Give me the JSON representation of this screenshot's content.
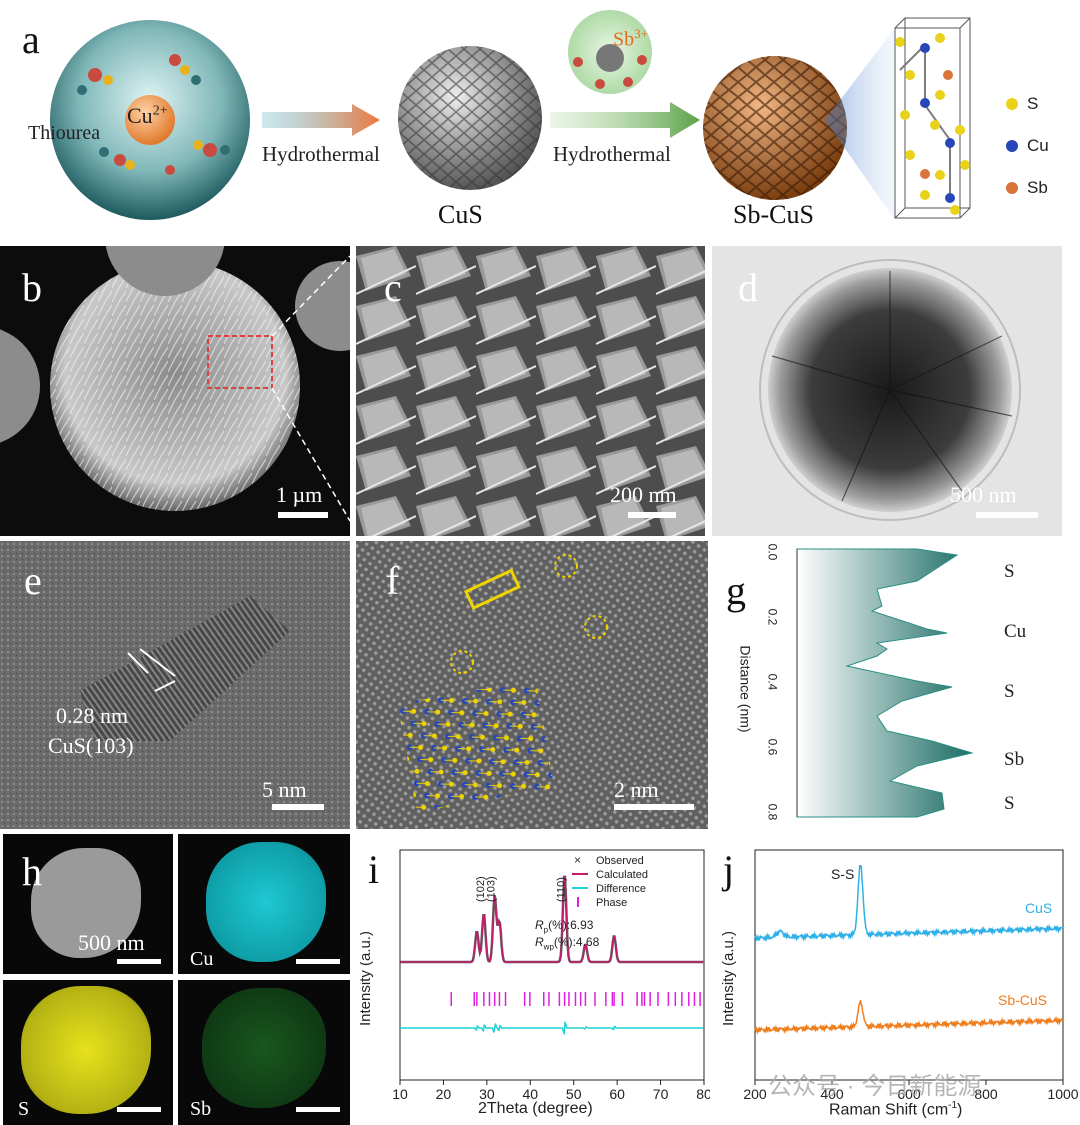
{
  "panels": {
    "a": {
      "label": "a",
      "ion_cu": "Cu2+",
      "ion_cu_base": "Cu",
      "ion_cu_sup": "2+",
      "ion_sb_base": "Sb",
      "ion_sb_sup": "3+",
      "thiourea": "Thiourea",
      "step1": "Hydrothermal",
      "step2": "Hydrothermal",
      "product1": "CuS",
      "product2": "Sb-CuS",
      "legend": [
        {
          "name": "S",
          "color": "#e8d21c"
        },
        {
          "name": "Cu",
          "color": "#2747b8"
        },
        {
          "name": "Sb",
          "color": "#d9743a"
        }
      ]
    },
    "b": {
      "label": "b",
      "scale": "1 µm"
    },
    "c": {
      "label": "c",
      "scale": "200 nm"
    },
    "d": {
      "label": "d",
      "scale": "500 nm"
    },
    "e": {
      "label": "e",
      "scale": "5 nm",
      "spacing": "0.28 nm",
      "plane": "CuS(103)"
    },
    "f": {
      "label": "f",
      "scale": "2 nm"
    },
    "g": {
      "label": "g",
      "ylabel": "Distance (nm)",
      "ticks": [
        "0.0",
        "0.2",
        "0.4",
        "0.6",
        "0.8"
      ],
      "peaks": [
        "S",
        "Cu",
        "S",
        "Sb",
        "S"
      ]
    },
    "h": {
      "label": "h",
      "scale": "500 nm",
      "maps": [
        "Cu",
        "S",
        "Sb"
      ]
    },
    "i": {
      "label": "i"
    },
    "j": {
      "label": "j"
    }
  },
  "watermark": "公众号 · 今日新能源",
  "chart_data": [
    {
      "type": "line",
      "id": "i",
      "xlabel": "2Theta (degree)",
      "ylabel": "Intensity (a.u.)",
      "xlim": [
        10,
        80
      ],
      "xticks": [
        10,
        20,
        30,
        40,
        50,
        60,
        70,
        80
      ],
      "legend": [
        "Observed",
        "Calculated",
        "Difference",
        "Phase"
      ],
      "legend_colors": [
        "#333333",
        "#c8196e",
        "#1fd1d6",
        "#e01ee0"
      ],
      "annotations": [
        "(102)",
        "(103)",
        "(110)"
      ],
      "annotation_x": [
        29.3,
        31.8,
        47.9
      ],
      "rp": "Rp(%):6.93",
      "rwp": "Rwp(%):4.68",
      "rp_sym": "R",
      "rp_sub": "p",
      "rp_val": "(%):6.93",
      "rwp_sub": "wp",
      "rwp_val": "(%):4.68",
      "peaks": [
        {
          "x": 27.7,
          "h": 0.35
        },
        {
          "x": 29.3,
          "h": 0.55
        },
        {
          "x": 31.8,
          "h": 0.75
        },
        {
          "x": 32.9,
          "h": 0.45
        },
        {
          "x": 47.9,
          "h": 1.0
        },
        {
          "x": 52.7,
          "h": 0.2
        },
        {
          "x": 59.3,
          "h": 0.3
        }
      ],
      "phase_ticks": [
        21.8,
        27.1,
        27.7,
        29.3,
        30.6,
        31.8,
        32.9,
        34.3,
        38.7,
        39.9,
        43.1,
        44.3,
        46.7,
        47.9,
        48.9,
        50.4,
        51.6,
        52.7,
        54.9,
        57.4,
        58.9,
        59.3,
        61.2,
        64.6,
        65.7,
        66.3,
        67.6,
        69.4,
        71.8,
        73.4,
        74.9,
        76.5,
        77.8,
        79.1
      ]
    },
    {
      "type": "line",
      "id": "j",
      "xlabel": "Raman Shift (cm-1)",
      "xlabel_base": "Raman Shift (cm",
      "xlabel_sup": "-1",
      "xlabel_tail": ")",
      "ylabel": "Intensity (a.u.)",
      "xlim": [
        200,
        1000
      ],
      "xticks": [
        200,
        400,
        600,
        800,
        1000
      ],
      "annotation": "S-S",
      "series": [
        {
          "name": "CuS",
          "color": "#2fb0e8",
          "peak": 474,
          "peak_h": 1.0
        },
        {
          "name": "Sb-CuS",
          "color": "#ef7d1c",
          "peak": 474,
          "peak_h": 0.35
        }
      ]
    }
  ]
}
